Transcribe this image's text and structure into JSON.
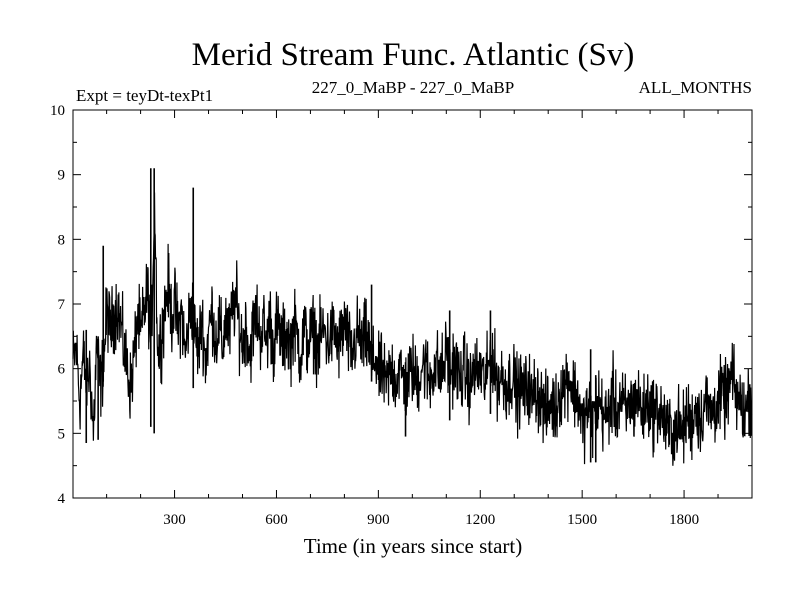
{
  "chart_data": {
    "type": "line",
    "title": "Merid Stream Func. Atlantic (Sv)",
    "subtitle_left": "Expt = teyDt-texPt1",
    "subtitle_center": "227_0_MaBP - 227_0_MaBP",
    "subtitle_right": "ALL_MONTHS",
    "xlabel": "Time (in years since start)",
    "ylabel": "",
    "xlim": [
      1,
      2000
    ],
    "ylim": [
      4,
      10
    ],
    "xticks": [
      300,
      600,
      900,
      1200,
      1500,
      1800
    ],
    "yticks": [
      4,
      5,
      6,
      7,
      8,
      9,
      10
    ],
    "grid": false,
    "series": [
      {
        "name": "Merid Stream Func. Atlantic",
        "color": "#000000",
        "x_start": 1,
        "x_step": 10,
        "values": [
          6.1,
          6.3,
          5.5,
          6.2,
          5.8,
          6.0,
          5.0,
          6.4,
          5.7,
          6.1,
          6.9,
          6.6,
          6.8,
          7.0,
          6.7,
          6.3,
          6.0,
          5.7,
          6.2,
          6.8,
          6.5,
          6.9,
          7.2,
          6.4,
          8.6,
          6.2,
          6.5,
          6.9,
          7.3,
          6.8,
          7.0,
          6.6,
          6.9,
          6.2,
          6.7,
          7.0,
          6.5,
          6.3,
          6.8,
          6.1,
          6.6,
          6.9,
          6.4,
          6.7,
          6.3,
          6.8,
          6.5,
          6.9,
          7.1,
          6.6,
          6.4,
          6.7,
          6.2,
          6.6,
          6.9,
          6.5,
          6.7,
          6.4,
          6.8,
          6.3,
          6.7,
          6.5,
          6.4,
          6.6,
          6.3,
          6.7,
          6.5,
          6.2,
          6.6,
          6.4,
          6.5,
          6.6,
          6.3,
          6.5,
          6.6,
          6.4,
          6.5,
          6.6,
          6.3,
          6.5,
          6.7,
          6.4,
          6.2,
          6.4,
          6.6,
          6.3,
          6.5,
          6.4,
          6.0,
          6.2,
          5.9,
          6.0,
          5.7,
          5.9,
          6.0,
          5.8,
          6.0,
          5.9,
          5.7,
          5.9,
          6.0,
          5.8,
          5.9,
          6.1,
          6.0,
          5.8,
          6.0,
          6.1,
          5.9,
          6.0,
          6.3,
          5.9,
          6.1,
          6.0,
          5.8,
          6.0,
          5.9,
          5.7,
          6.0,
          5.9,
          6.0,
          5.8,
          5.9,
          6.3,
          6.0,
          5.8,
          5.9,
          5.8,
          5.7,
          5.9,
          5.8,
          5.6,
          5.7,
          5.6,
          5.8,
          5.5,
          5.7,
          5.6,
          5.5,
          5.3,
          5.4,
          5.5,
          5.3,
          5.6,
          5.7,
          5.8,
          5.9,
          5.7,
          5.6,
          5.5,
          5.1,
          5.3,
          5.4,
          5.2,
          5.4,
          5.5,
          5.3,
          5.2,
          5.4,
          5.6,
          5.3,
          5.5,
          5.4,
          5.3,
          5.5,
          5.4,
          5.6,
          5.4,
          5.3,
          5.5,
          5.4,
          5.3,
          5.4,
          5.3,
          5.2,
          5.0,
          5.1,
          5.0,
          5.2,
          5.0,
          5.1,
          5.3,
          5.1,
          5.4,
          5.3,
          5.2,
          5.5,
          5.4,
          5.3,
          5.4,
          5.5,
          5.6,
          5.5,
          5.7,
          5.9,
          5.6,
          5.5,
          5.4,
          5.3,
          5.6,
          5.4,
          5.5
        ]
      }
    ],
    "spikes": [
      {
        "x": 230,
        "low": 5.1,
        "high": 9.1
      },
      {
        "x": 240,
        "low": 5.0,
        "high": 9.1
      },
      {
        "x": 355,
        "low": 5.7,
        "high": 8.8
      },
      {
        "x": 90,
        "low": 5.8,
        "high": 7.9
      },
      {
        "x": 40,
        "low": 4.85,
        "high": 6.6
      },
      {
        "x": 75,
        "low": 4.9,
        "high": 6.5
      },
      {
        "x": 1525,
        "low": 4.55,
        "high": 6.3
      },
      {
        "x": 1540,
        "low": 4.55,
        "high": 5.9
      },
      {
        "x": 1110,
        "low": 5.2,
        "high": 6.9
      },
      {
        "x": 1230,
        "low": 5.3,
        "high": 6.9
      },
      {
        "x": 980,
        "low": 4.95,
        "high": 6.1
      },
      {
        "x": 880,
        "low": 5.8,
        "high": 7.3
      }
    ]
  }
}
